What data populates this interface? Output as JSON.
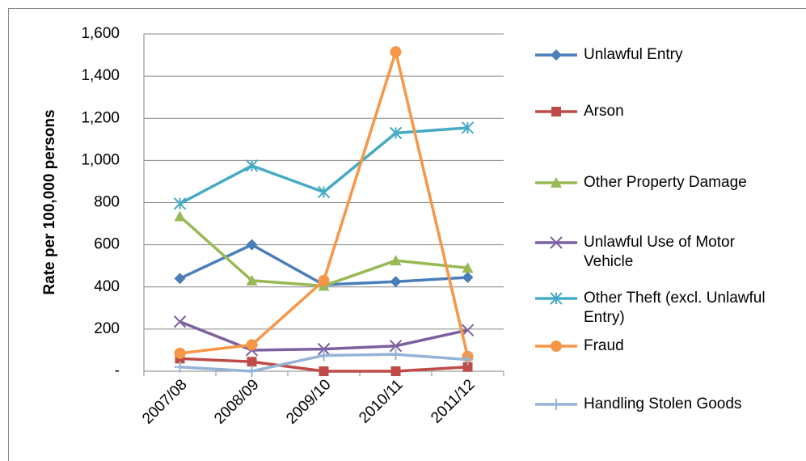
{
  "chart_data": {
    "type": "line",
    "y_label": "Rate per 100,000 persons",
    "categories": [
      "2007/08",
      "2008/09",
      "2009/10",
      "2010/11",
      "2011/12"
    ],
    "ylim": [
      0,
      1600
    ],
    "yticks": [
      {
        "value": 0,
        "label": "-"
      },
      200,
      400,
      600,
      800,
      {
        "value": 1000,
        "label": "1,000"
      },
      {
        "value": 1200,
        "label": "1,200"
      },
      {
        "value": 1400,
        "label": "1,400"
      },
      {
        "value": 1600,
        "label": "1,600"
      }
    ],
    "grid": true,
    "legend": "right",
    "series": [
      {
        "name": "Unlawful Entry",
        "color": "#4a7ebb",
        "marker": "diamond",
        "values": [
          440,
          600,
          410,
          425,
          445
        ]
      },
      {
        "name": "Arson",
        "color": "#be4b48",
        "marker": "square",
        "values": [
          60,
          45,
          0,
          0,
          20
        ]
      },
      {
        "name": "Other Property Damage",
        "color": "#98b954",
        "marker": "triangle",
        "values": [
          735,
          430,
          405,
          525,
          490
        ]
      },
      {
        "name": "Unlawful Use of Motor Vehicle",
        "color": "#7d60a0",
        "marker": "x",
        "values": [
          235,
          100,
          105,
          120,
          195
        ]
      },
      {
        "name": "Other Theft (excl. Unlawful Entry)",
        "color": "#46aac5",
        "marker": "star",
        "values": [
          795,
          975,
          850,
          1130,
          1155
        ]
      },
      {
        "name": "Fraud",
        "color": "#f79646",
        "marker": "circle",
        "values": [
          85,
          125,
          430,
          1515,
          70
        ]
      },
      {
        "name": "Handling Stolen Goods",
        "color": "#95b3d7",
        "marker": "plus",
        "values": [
          20,
          0,
          75,
          80,
          55
        ]
      }
    ]
  }
}
